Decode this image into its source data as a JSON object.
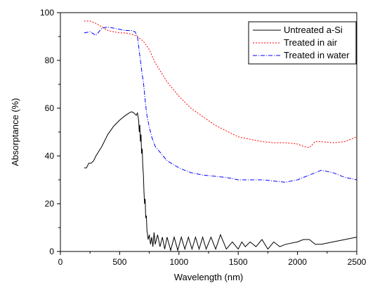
{
  "chart_data": {
    "type": "line",
    "xlabel": "Wavelength (nm)",
    "ylabel": "Absorptance (%)",
    "xlim": [
      0,
      2500
    ],
    "ylim": [
      0,
      100
    ],
    "x_ticks": [
      0,
      500,
      1000,
      1500,
      2000,
      2500
    ],
    "y_ticks": [
      0,
      20,
      40,
      60,
      80,
      100
    ],
    "x_tick_labels": [
      "0",
      "500",
      "1000",
      "1500",
      "2000",
      "2500"
    ],
    "y_tick_labels": [
      "0",
      "20",
      "40",
      "60",
      "80",
      "100"
    ],
    "grid": false,
    "legend_position": "top-right",
    "series": [
      {
        "name": "Untreated a-Si",
        "color": "#000000",
        "dash": "solid",
        "x": [
          200,
          220,
          240,
          260,
          280,
          300,
          350,
          400,
          450,
          500,
          550,
          580,
          600,
          620,
          640,
          650,
          660,
          665,
          670,
          675,
          680,
          685,
          690,
          695,
          700,
          705,
          710,
          715,
          720,
          725,
          730,
          740,
          750,
          760,
          770,
          780,
          790,
          800,
          820,
          840,
          860,
          880,
          900,
          930,
          960,
          990,
          1020,
          1050,
          1080,
          1110,
          1140,
          1170,
          1200,
          1230,
          1270,
          1310,
          1350,
          1400,
          1450,
          1500,
          1530,
          1560,
          1600,
          1650,
          1700,
          1750,
          1800,
          1850,
          1900,
          2000,
          2050,
          2100,
          2150,
          2200,
          2300,
          2400,
          2500
        ],
        "y": [
          35,
          35,
          37,
          37,
          38,
          40,
          44,
          49,
          52.5,
          55,
          57,
          58,
          58.5,
          58,
          57,
          58,
          55,
          50,
          53,
          46,
          49,
          41,
          43,
          36,
          32,
          25,
          20,
          22,
          14,
          15,
          9,
          5,
          7,
          3,
          6,
          2,
          8,
          3,
          7,
          2,
          6,
          1,
          6,
          0.5,
          6,
          0.5,
          6,
          1,
          6,
          1,
          6,
          1,
          6,
          1,
          6,
          1,
          7,
          1,
          4,
          1,
          4,
          2,
          4,
          2,
          5,
          1,
          4,
          2,
          3,
          4,
          5,
          5,
          3,
          3,
          4,
          5,
          6
        ]
      },
      {
        "name": "Treated in air",
        "color": "#ff0000",
        "dash": "2 2",
        "x": [
          200,
          250,
          300,
          350,
          400,
          450,
          500,
          550,
          600,
          650,
          700,
          750,
          800,
          850,
          900,
          1000,
          1100,
          1200,
          1300,
          1400,
          1500,
          1600,
          1700,
          1800,
          1900,
          2000,
          2050,
          2100,
          2150,
          2200,
          2300,
          2400,
          2500
        ],
        "y": [
          96.5,
          96.5,
          95.5,
          94,
          92.5,
          92,
          91.5,
          91.5,
          91,
          90,
          88,
          84.5,
          79,
          75,
          71,
          65,
          60,
          56.5,
          53,
          50.5,
          48,
          47,
          46,
          45.5,
          45.5,
          45,
          44,
          43.5,
          46,
          46,
          45.5,
          46,
          48
        ]
      },
      {
        "name": "Treated in water",
        "color": "#0000ff",
        "dash": "6 2 1 2",
        "x": [
          200,
          250,
          300,
          350,
          400,
          450,
          500,
          550,
          600,
          630,
          650,
          660,
          670,
          680,
          690,
          700,
          710,
          720,
          730,
          750,
          770,
          800,
          850,
          900,
          1000,
          1100,
          1200,
          1300,
          1400,
          1500,
          1600,
          1700,
          1800,
          1900,
          2000,
          2100,
          2200,
          2300,
          2400,
          2450,
          2500
        ],
        "y": [
          91.5,
          92,
          90.5,
          93.5,
          94,
          93.5,
          93,
          92.5,
          92.5,
          92,
          90,
          86,
          82,
          78,
          74,
          71,
          66,
          61,
          57,
          52,
          48,
          44,
          41,
          38,
          35,
          33,
          32,
          31.5,
          31,
          30,
          30,
          30,
          29.5,
          29,
          30,
          32,
          34,
          33,
          31,
          30.5,
          30
        ]
      }
    ]
  }
}
